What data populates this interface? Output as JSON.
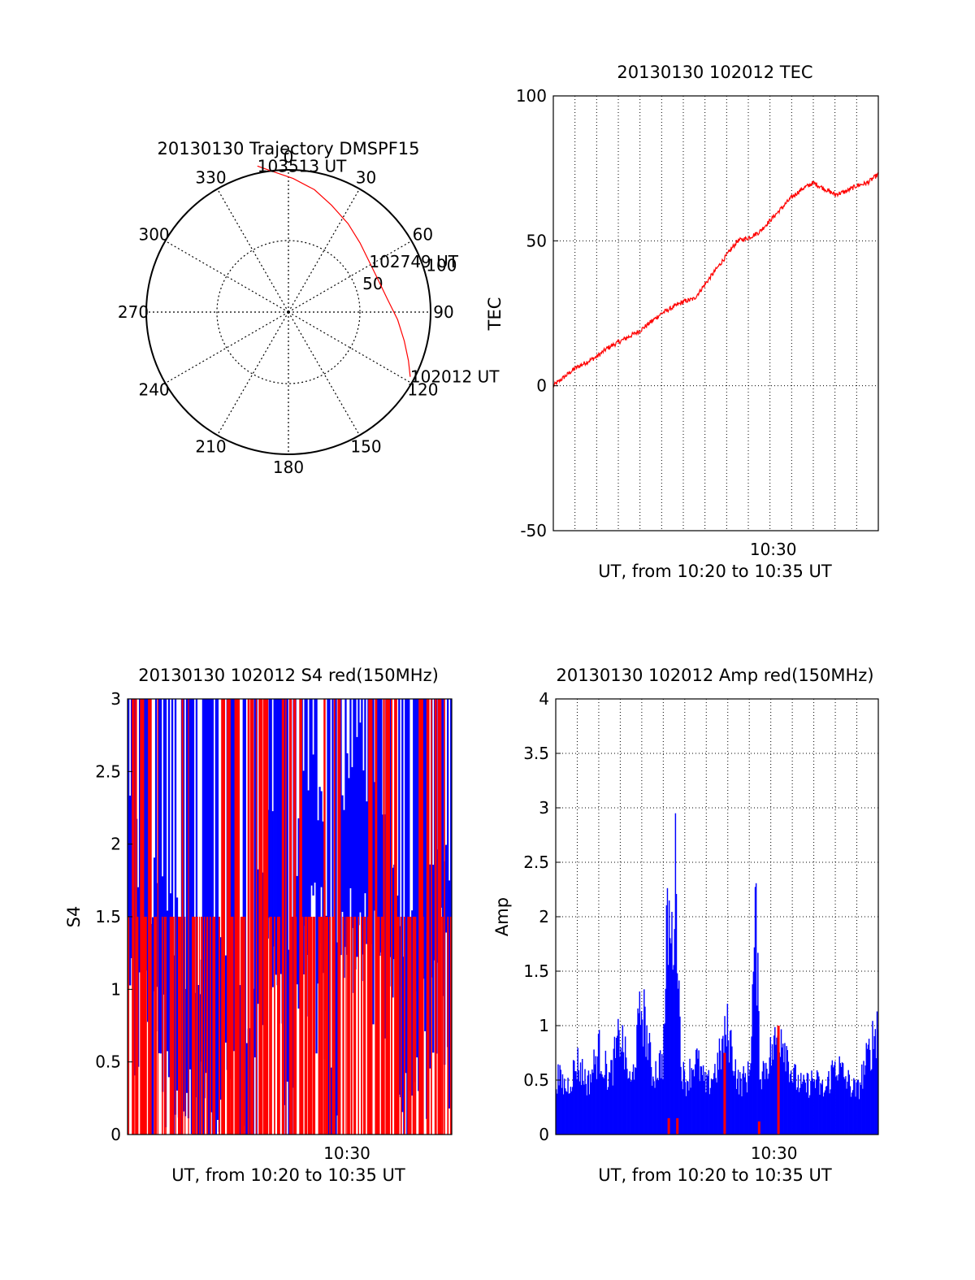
{
  "figure": {
    "colors": {
      "red": "#ff0000",
      "blue": "#0000ff",
      "black": "#000000",
      "background": "#ffffff"
    }
  },
  "chart_data": [
    {
      "type": "scatter",
      "subtype": "polar-trajectory",
      "title": "20130130 Trajectory DMSPF15",
      "azimuth_labels": [
        "0",
        "30",
        "60",
        "90",
        "120",
        "150",
        "180",
        "210",
        "240",
        "270",
        "300",
        "330"
      ],
      "radius_labels": [
        "50",
        "100"
      ],
      "grid": true,
      "series": [
        {
          "color": "#ff0000",
          "points": [
            {
              "az": 118,
              "r": 97
            },
            {
              "az": 112,
              "r": 91
            },
            {
              "az": 104,
              "r": 84
            },
            {
              "az": 94,
              "r": 77
            },
            {
              "az": 82,
              "r": 70
            },
            {
              "az": 70,
              "r": 67
            },
            {
              "az": 58,
              "r": 67
            },
            {
              "az": 46,
              "r": 70
            },
            {
              "az": 34,
              "r": 75
            },
            {
              "az": 22,
              "r": 81
            },
            {
              "az": 12,
              "r": 88
            },
            {
              "az": 2,
              "r": 94
            },
            {
              "az": -7,
              "r": 100
            },
            {
              "az": -12,
              "r": 105
            }
          ]
        }
      ],
      "annotations": [
        {
          "text": "103513 UT",
          "az": -12,
          "r": 105
        },
        {
          "text": "102749 UT",
          "az": 58,
          "r": 67
        },
        {
          "text": "102012 UT",
          "az": 118,
          "r": 97
        }
      ]
    },
    {
      "type": "line",
      "title": "20130130 102012 TEC",
      "xlabel": "UT, from 10:20 to 10:35 UT",
      "ylabel": "TEC",
      "xlim": [
        0,
        15
      ],
      "ylim": [
        -50,
        100
      ],
      "x_tick_labels": [
        {
          "x": 10.15,
          "label": "10:30"
        }
      ],
      "y_ticks": [
        -50,
        0,
        50,
        100
      ],
      "grid": true,
      "series": [
        {
          "color": "#ff0000",
          "x": [
            0,
            0.5,
            1.0,
            1.5,
            2.0,
            2.5,
            3.0,
            3.5,
            4.0,
            4.5,
            5.0,
            5.5,
            6.0,
            6.5,
            7.0,
            7.5,
            8.0,
            8.5,
            9.0,
            9.5,
            10.0,
            10.5,
            11.0,
            11.5,
            12.0,
            12.5,
            13.0,
            13.5,
            14.0,
            14.5,
            15.0
          ],
          "y": [
            0,
            3,
            6,
            8,
            10,
            13,
            15,
            17,
            19,
            22,
            25,
            27,
            29,
            30,
            35,
            40,
            45,
            50,
            51,
            53,
            57,
            61,
            65,
            68,
            70,
            68,
            66,
            67,
            69,
            70,
            73
          ]
        }
      ]
    },
    {
      "type": "bar",
      "subtype": "dense-time-series",
      "title": "20130130 102012 S4 red(150MHz)",
      "xlabel": "UT, from 10:20 to 10:35 UT",
      "ylabel": "S4",
      "xlim": [
        0,
        15
      ],
      "ylim": [
        0,
        3
      ],
      "x_tick_labels": [
        {
          "x": 10.15,
          "label": "10:30"
        }
      ],
      "y_ticks": [
        0,
        0.5,
        1,
        1.5,
        2,
        2.5,
        3
      ],
      "grid": false,
      "series": [
        {
          "color": "#0000ff",
          "x": [
            0,
            0.5,
            1.0,
            1.5,
            2.0,
            2.5,
            3.0,
            3.5,
            4.0,
            4.5,
            5.0,
            5.5,
            6.0,
            6.5,
            7.0,
            7.5,
            8.0,
            8.5,
            9.0,
            9.5,
            10.0,
            10.5,
            11.0,
            11.5,
            12.0,
            12.5,
            13.0,
            13.5,
            14.0,
            14.5,
            15.0
          ],
          "y": [
            2.1,
            1.9,
            1.7,
            1.8,
            1.6,
            1.3,
            1.1,
            1.2,
            0.9,
            1.4,
            1.5,
            0.5,
            1.6,
            2.3,
            1.9,
            0.9,
            2.4,
            2.6,
            2.2,
            0.45,
            2.3,
            2.7,
            2.5,
            2.1,
            2.4,
            1.4,
            1.2,
            1.5,
            1.8,
            2.2,
            2.0
          ]
        },
        {
          "color": "#ff0000",
          "x": [
            0,
            0.5,
            1.0,
            1.5,
            2.0,
            2.5,
            3.0,
            3.5,
            4.0,
            4.5,
            5.0,
            5.5,
            6.0,
            6.5,
            7.0,
            7.5,
            8.0,
            8.5,
            9.0,
            9.5,
            10.0,
            10.5,
            11.0,
            11.5,
            12.0,
            12.5,
            13.0,
            13.5,
            14.0,
            14.5,
            15.0
          ],
          "y": [
            3,
            3,
            3,
            3,
            1.5,
            3,
            3,
            1.5,
            3,
            3,
            3,
            3,
            3,
            3,
            3,
            3,
            3,
            1.5,
            3,
            3,
            3,
            1.5,
            3,
            3,
            3,
            3,
            1.5,
            3,
            3,
            3,
            3
          ]
        }
      ]
    },
    {
      "type": "bar",
      "subtype": "dense-time-series",
      "title": "20130130 102012 Amp red(150MHz)",
      "xlabel": "UT, from 10:20 to 10:35 UT",
      "ylabel": "Amp",
      "xlim": [
        0,
        15
      ],
      "ylim": [
        0,
        4
      ],
      "x_tick_labels": [
        {
          "x": 10.15,
          "label": "10:30"
        }
      ],
      "y_ticks": [
        0,
        0.5,
        1,
        1.5,
        2,
        2.5,
        3,
        3.5,
        4
      ],
      "grid": true,
      "series": [
        {
          "color": "#0000ff",
          "x": [
            0,
            0.5,
            1.0,
            1.5,
            2.0,
            2.5,
            3.0,
            3.5,
            4.0,
            4.5,
            5.0,
            5.2,
            5.4,
            5.6,
            5.8,
            6.0,
            6.5,
            7.0,
            7.5,
            8.0,
            8.5,
            9.0,
            9.3,
            9.5,
            10.0,
            10.5,
            11.0,
            11.5,
            12.0,
            12.5,
            13.0,
            13.5,
            14.0,
            14.5,
            15.0
          ],
          "y": [
            0.7,
            0.55,
            0.85,
            0.6,
            1.0,
            0.65,
            1.2,
            0.55,
            1.55,
            0.7,
            0.9,
            2.6,
            2.2,
            3.2,
            0.9,
            0.6,
            0.9,
            0.55,
            0.8,
            1.25,
            0.6,
            0.7,
            2.58,
            0.7,
            0.95,
            1.25,
            0.7,
            0.55,
            0.65,
            0.5,
            0.85,
            0.65,
            0.5,
            0.9,
            1.35
          ]
        },
        {
          "color": "#ff0000",
          "x": [
            5.2,
            5.6,
            7.8,
            9.4,
            10.3
          ],
          "y": [
            0.15,
            0.15,
            0.75,
            0.12,
            1.0
          ]
        }
      ]
    }
  ]
}
